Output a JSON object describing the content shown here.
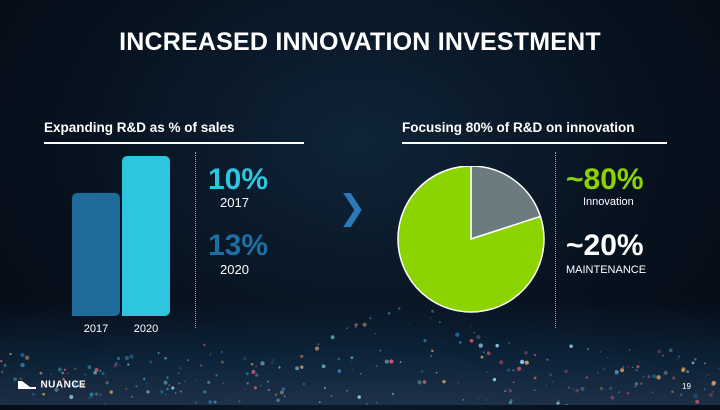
{
  "slide": {
    "title": "INCREASED INNOVATION INVESTMENT",
    "page_number": "19",
    "logo_text": "NUANCE"
  },
  "left_panel": {
    "heading": "Expanding R&D as % of sales",
    "stats": [
      {
        "value": "10%",
        "year": "2017",
        "color": "#2ec6de"
      },
      {
        "value": "13%",
        "year": "2020",
        "color": "#1d6fa3"
      }
    ]
  },
  "right_panel": {
    "heading": "Focusing 80% of R&D on innovation",
    "stats": [
      {
        "value": "~80%",
        "label": "Innovation",
        "color": "#8bd400"
      },
      {
        "value": "~20%",
        "label": "MAINTENANCE",
        "color": "#ffffff"
      }
    ]
  },
  "chevron": "❯",
  "chart_data": [
    {
      "type": "bar",
      "categories": [
        "2017",
        "2020"
      ],
      "values": [
        10,
        13
      ],
      "colors": [
        "#1f6b9a",
        "#2ec6de"
      ],
      "title": "Expanding R&D as % of sales",
      "xlabel": "",
      "ylabel": "",
      "ylim": [
        0,
        13
      ],
      "grid": false
    },
    {
      "type": "pie",
      "categories": [
        "Innovation",
        "Maintenance"
      ],
      "values": [
        80,
        20
      ],
      "colors": [
        "#8bd400",
        "#6b7b80"
      ],
      "title": "Focusing 80% of R&D on innovation"
    }
  ]
}
